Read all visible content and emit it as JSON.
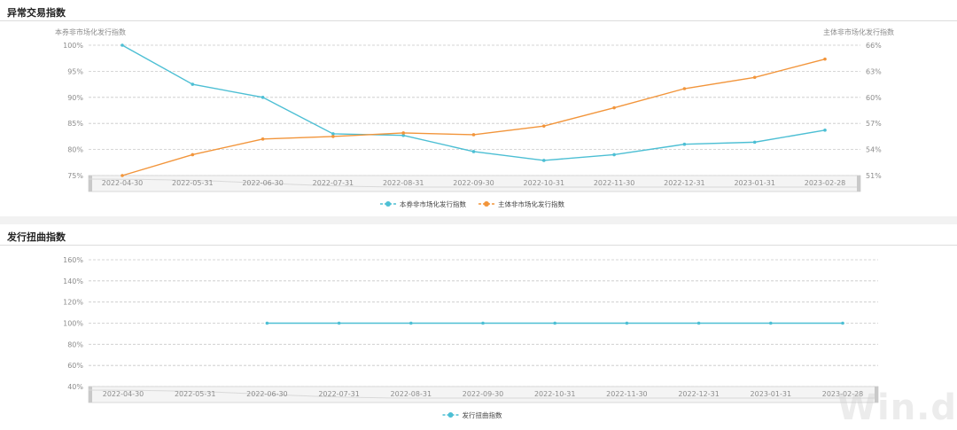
{
  "watermark": "Win.d",
  "chart_data": [
    {
      "type": "line",
      "title": "异常交易指数",
      "ylabel_left": "本券非市场化发行指数",
      "ylabel_right": "主体非市场化发行指数",
      "categories": [
        "2022-04-30",
        "2022-05-31",
        "2022-06-30",
        "2022-07-31",
        "2022-08-31",
        "2022-09-30",
        "2022-10-31",
        "2022-11-30",
        "2022-12-31",
        "2023-01-31",
        "2023-02-28"
      ],
      "ylim_left": [
        75,
        100
      ],
      "yticks_left": [
        "75%",
        "80%",
        "85%",
        "90%",
        "95%",
        "100%"
      ],
      "ylim_right": [
        51,
        66
      ],
      "yticks_right": [
        "51%",
        "54%",
        "57%",
        "60%",
        "63%",
        "66%"
      ],
      "grid": true,
      "legend": "bottom-center",
      "series": [
        {
          "name": "本券非市场化发行指数",
          "axis": "left",
          "color": "#4dbfd4",
          "values": [
            100,
            92.5,
            90,
            83,
            82.7,
            79.6,
            77.9,
            79,
            81,
            81.4,
            83.7
          ]
        },
        {
          "name": "主体非市场化发行指数",
          "axis": "right",
          "color": "#f2953b",
          "values": [
            51,
            53.4,
            55.2,
            55.5,
            55.9,
            55.7,
            56.7,
            58.8,
            61,
            62.3,
            64.4
          ]
        }
      ]
    },
    {
      "type": "line",
      "title": "发行扭曲指数",
      "categories": [
        "2022-04-30",
        "2022-05-31",
        "2022-06-30",
        "2022-07-31",
        "2022-08-31",
        "2022-09-30",
        "2022-10-31",
        "2022-11-30",
        "2022-12-31",
        "2023-01-31",
        "2023-02-28"
      ],
      "ylim": [
        40,
        160
      ],
      "yticks": [
        "40%",
        "60%",
        "80%",
        "100%",
        "120%",
        "140%",
        "160%"
      ],
      "grid": true,
      "legend": "bottom-center",
      "series": [
        {
          "name": "发行扭曲指数",
          "color": "#4dbfd4",
          "values": [
            null,
            null,
            100,
            100,
            100,
            100,
            100,
            100,
            100,
            100,
            100
          ]
        }
      ]
    }
  ]
}
